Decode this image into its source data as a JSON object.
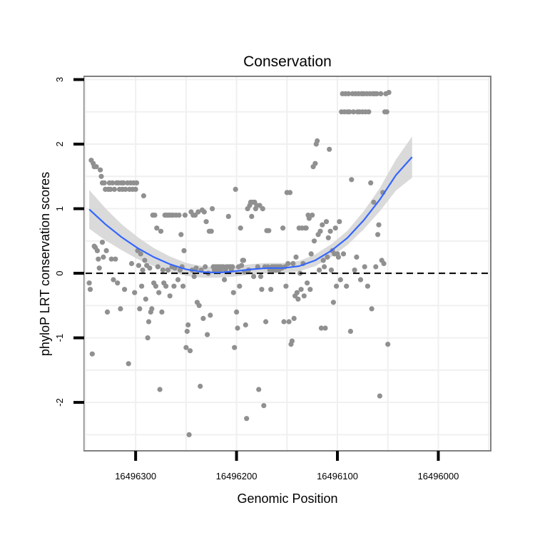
{
  "chart_data": {
    "type": "scatter",
    "title": "Conservation",
    "xlabel": "Genomic Position",
    "ylabel": "phyloP LRT conservation scores",
    "x_reversed": true,
    "xlim": [
      16496351,
      16495948
    ],
    "ylim": [
      -2.75,
      3.05
    ],
    "x_ticks": [
      16496300,
      16496200,
      16496100,
      16496000
    ],
    "x_tick_labels": [
      "16496300",
      "16496200",
      "16496100",
      "16496000"
    ],
    "y_ticks": [
      -2,
      -1,
      0,
      1,
      2,
      3
    ],
    "y_tick_labels": [
      "-2",
      "-1",
      "0",
      "1",
      "2",
      "3"
    ],
    "grid": true,
    "reference_line": {
      "y": 0,
      "style": "dashed",
      "color": "#000000"
    },
    "point_color": "#909090",
    "smooth_color": "#3366ff",
    "ribbon_color": "#d3d3d3",
    "points": [
      [
        16496346,
        -0.15
      ],
      [
        16496345,
        -0.25
      ],
      [
        16496344,
        1.75
      ],
      [
        16496343,
        -1.25
      ],
      [
        16496342,
        1.7
      ],
      [
        16496341,
        1.65
      ],
      [
        16496341,
        0.42
      ],
      [
        16496340,
        0.4
      ],
      [
        16496339,
        1.65
      ],
      [
        16496338,
        0.35
      ],
      [
        16496337,
        0.22
      ],
      [
        16496336,
        0.08
      ],
      [
        16496335,
        1.6
      ],
      [
        16496334,
        1.5
      ],
      [
        16496333,
        0.48
      ],
      [
        16496333,
        1.4
      ],
      [
        16496332,
        0.25
      ],
      [
        16496331,
        1.4
      ],
      [
        16496330,
        1.3
      ],
      [
        16496329,
        0.35
      ],
      [
        16496328,
        -0.6
      ],
      [
        16496327,
        1.3
      ],
      [
        16496326,
        1.4
      ],
      [
        16496325,
        1.3
      ],
      [
        16496324,
        0.22
      ],
      [
        16496323,
        1.4
      ],
      [
        16496322,
        -0.1
      ],
      [
        16496321,
        1.3
      ],
      [
        16496320,
        0.22
      ],
      [
        16496319,
        1.4
      ],
      [
        16496318,
        -0.15
      ],
      [
        16496317,
        1.4
      ],
      [
        16496316,
        1.3
      ],
      [
        16496315,
        -0.55
      ],
      [
        16496314,
        1.4
      ],
      [
        16496313,
        1.3
      ],
      [
        16496312,
        1.4
      ],
      [
        16496311,
        -0.25
      ],
      [
        16496310,
        1.3
      ],
      [
        16496308,
        1.4
      ],
      [
        16496307,
        -1.4
      ],
      [
        16496306,
        1.3
      ],
      [
        16496305,
        1.4
      ],
      [
        16496304,
        0.15
      ],
      [
        16496303,
        1.3
      ],
      [
        16496302,
        1.4
      ],
      [
        16496301,
        -0.3
      ],
      [
        16496300,
        1.3
      ],
      [
        16496299,
        1.4
      ],
      [
        16496298,
        0.35
      ],
      [
        16496297,
        0.12
      ],
      [
        16496296,
        -0.55
      ],
      [
        16496295,
        0.3
      ],
      [
        16496294,
        -0.2
      ],
      [
        16496293,
        0.05
      ],
      [
        16496292,
        1.2
      ],
      [
        16496291,
        0.2
      ],
      [
        16496290,
        -0.4
      ],
      [
        16496289,
        0.12
      ],
      [
        16496288,
        -1.0
      ],
      [
        16496287,
        -0.75
      ],
      [
        16496286,
        0.08
      ],
      [
        16496285,
        -0.6
      ],
      [
        16496284,
        -0.55
      ],
      [
        16496283,
        0.9
      ],
      [
        16496282,
        -0.15
      ],
      [
        16496281,
        0.9
      ],
      [
        16496280,
        -0.2
      ],
      [
        16496279,
        0.7
      ],
      [
        16496278,
        0.1
      ],
      [
        16496277,
        -0.3
      ],
      [
        16496276,
        -1.8
      ],
      [
        16496275,
        0.65
      ],
      [
        16496274,
        -0.6
      ],
      [
        16496273,
        0.05
      ],
      [
        16496272,
        -0.15
      ],
      [
        16496271,
        0.9
      ],
      [
        16496270,
        -0.2
      ],
      [
        16496269,
        0.9
      ],
      [
        16496268,
        0.05
      ],
      [
        16496267,
        0.9
      ],
      [
        16496266,
        -0.35
      ],
      [
        16496265,
        0.9
      ],
      [
        16496264,
        0.1
      ],
      [
        16496263,
        0.9
      ],
      [
        16496262,
        -0.2
      ],
      [
        16496261,
        0.08
      ],
      [
        16496260,
        0.9
      ],
      [
        16496258,
        -0.1
      ],
      [
        16496257,
        0.9
      ],
      [
        16496256,
        0.05
      ],
      [
        16496255,
        0.6
      ],
      [
        16496254,
        0.1
      ],
      [
        16496253,
        -0.2
      ],
      [
        16496252,
        0.35
      ],
      [
        16496251,
        0.9
      ],
      [
        16496250,
        -1.15
      ],
      [
        16496249,
        -0.9
      ],
      [
        16496248,
        -0.8
      ],
      [
        16496247,
        -2.5
      ],
      [
        16496246,
        -1.2
      ],
      [
        16496245,
        0.95
      ],
      [
        16496244,
        0.05
      ],
      [
        16496243,
        0.9
      ],
      [
        16496242,
        -0.05
      ],
      [
        16496241,
        0.9
      ],
      [
        16496240,
        0.08
      ],
      [
        16496239,
        -0.45
      ],
      [
        16496238,
        0.95
      ],
      [
        16496237,
        -0.5
      ],
      [
        16496236,
        -1.75
      ],
      [
        16496235,
        0.05
      ],
      [
        16496234,
        0.98
      ],
      [
        16496233,
        -0.7
      ],
      [
        16496232,
        0.95
      ],
      [
        16496231,
        0.1
      ],
      [
        16496230,
        0.8
      ],
      [
        16496229,
        -0.95
      ],
      [
        16496228,
        0.0
      ],
      [
        16496227,
        0.65
      ],
      [
        16496226,
        -0.65
      ],
      [
        16496225,
        0.65
      ],
      [
        16496224,
        1.0
      ],
      [
        16496223,
        0.1
      ],
      [
        16496222,
        0.05
      ],
      [
        16496221,
        0.1
      ],
      [
        16496220,
        0.1
      ],
      [
        16496219,
        0.05
      ],
      [
        16496218,
        0.1
      ],
      [
        16496217,
        0.1
      ],
      [
        16496216,
        0.05
      ],
      [
        16496215,
        0.1
      ],
      [
        16496214,
        0.1
      ],
      [
        16496213,
        0.1
      ],
      [
        16496212,
        -0.1
      ],
      [
        16496211,
        0.05
      ],
      [
        16496210,
        0.1
      ],
      [
        16496209,
        0.1
      ],
      [
        16496208,
        0.88
      ],
      [
        16496207,
        0.1
      ],
      [
        16496206,
        0.1
      ],
      [
        16496205,
        0.05
      ],
      [
        16496204,
        0.1
      ],
      [
        16496203,
        -0.3
      ],
      [
        16496202,
        -1.15
      ],
      [
        16496201,
        1.3
      ],
      [
        16496200,
        -0.6
      ],
      [
        16496199,
        -0.85
      ],
      [
        16496198,
        0.1
      ],
      [
        16496197,
        -0.2
      ],
      [
        16496196,
        0.7
      ],
      [
        16496195,
        0.12
      ],
      [
        16496194,
        0.2
      ],
      [
        16496193,
        0.2
      ],
      [
        16496192,
        0.02
      ],
      [
        16496191,
        -0.8
      ],
      [
        16496190,
        -2.25
      ],
      [
        16496189,
        1.0
      ],
      [
        16496188,
        0.05
      ],
      [
        16496187,
        1.05
      ],
      [
        16496186,
        1.1
      ],
      [
        16496185,
        0.88
      ],
      [
        16496184,
        1.1
      ],
      [
        16496183,
        -0.05
      ],
      [
        16496182,
        1.1
      ],
      [
        16496181,
        1.0
      ],
      [
        16496180,
        1.05
      ],
      [
        16496179,
        0.1
      ],
      [
        16496178,
        -1.8
      ],
      [
        16496177,
        1.05
      ],
      [
        16496176,
        -0.05
      ],
      [
        16496175,
        -0.25
      ],
      [
        16496174,
        1.0
      ],
      [
        16496173,
        -2.05
      ],
      [
        16496172,
        0.1
      ],
      [
        16496171,
        -0.75
      ],
      [
        16496170,
        0.66
      ],
      [
        16496169,
        0.1
      ],
      [
        16496168,
        0.66
      ],
      [
        16496167,
        0.05
      ],
      [
        16496166,
        -0.25
      ],
      [
        16496165,
        0.1
      ],
      [
        16496164,
        0.05
      ],
      [
        16496163,
        0.1
      ],
      [
        16496162,
        0.1
      ],
      [
        16496161,
        0.05
      ],
      [
        16496160,
        0.1
      ],
      [
        16496159,
        0.1
      ],
      [
        16496158,
        0.05
      ],
      [
        16496157,
        0.1
      ],
      [
        16496156,
        0.1
      ],
      [
        16496155,
        0.08
      ],
      [
        16496154,
        0.7
      ],
      [
        16496153,
        -0.75
      ],
      [
        16496152,
        0.1
      ],
      [
        16496151,
        -0.2
      ],
      [
        16496150,
        1.25
      ],
      [
        16496149,
        0.15
      ],
      [
        16496148,
        -0.75
      ],
      [
        16496147,
        1.25
      ],
      [
        16496146,
        -1.1
      ],
      [
        16496145,
        -1.05
      ],
      [
        16496144,
        0.15
      ],
      [
        16496143,
        -0.7
      ],
      [
        16496142,
        -0.35
      ],
      [
        16496141,
        0.25
      ],
      [
        16496140,
        -0.3
      ],
      [
        16496139,
        -0.4
      ],
      [
        16496138,
        0.7
      ],
      [
        16496137,
        0.0
      ],
      [
        16496136,
        -0.25
      ],
      [
        16496135,
        0.7
      ],
      [
        16496134,
        0.15
      ],
      [
        16496133,
        -0.35
      ],
      [
        16496132,
        0.7
      ],
      [
        16496131,
        0.7
      ],
      [
        16496130,
        -0.15
      ],
      [
        16496129,
        0.9
      ],
      [
        16496128,
        0.85
      ],
      [
        16496127,
        -0.25
      ],
      [
        16496126,
        0.3
      ],
      [
        16496125,
        0.9
      ],
      [
        16496124,
        1.65
      ],
      [
        16496123,
        0.5
      ],
      [
        16496122,
        1.7
      ],
      [
        16496121,
        2.0
      ],
      [
        16496120,
        2.05
      ],
      [
        16496119,
        0.6
      ],
      [
        16496118,
        0.05
      ],
      [
        16496117,
        0.65
      ],
      [
        16496116,
        -0.85
      ],
      [
        16496115,
        0.75
      ],
      [
        16496114,
        0.2
      ],
      [
        16496113,
        0.1
      ],
      [
        16496112,
        -0.85
      ],
      [
        16496111,
        0.8
      ],
      [
        16496110,
        0.25
      ],
      [
        16496109,
        0.55
      ],
      [
        16496108,
        1.92
      ],
      [
        16496107,
        0.65
      ],
      [
        16496106,
        0.05
      ],
      [
        16496105,
        0.35
      ],
      [
        16496104,
        -0.45
      ],
      [
        16496103,
        0.3
      ],
      [
        16496102,
        0.7
      ],
      [
        16496101,
        -0.2
      ],
      [
        16496100,
        0.3
      ],
      [
        16496099,
        0.25
      ],
      [
        16496098,
        0.8
      ],
      [
        16496097,
        -0.1
      ],
      [
        16496096,
        2.5
      ],
      [
        16496095,
        2.78
      ],
      [
        16496094,
        0.3
      ],
      [
        16496093,
        2.5
      ],
      [
        16496092,
        2.78
      ],
      [
        16496091,
        -0.2
      ],
      [
        16496090,
        2.5
      ],
      [
        16496089,
        2.78
      ],
      [
        16496088,
        2.5
      ],
      [
        16496087,
        -0.9
      ],
      [
        16496086,
        1.45
      ],
      [
        16496085,
        2.78
      ],
      [
        16496084,
        2.5
      ],
      [
        16496083,
        0.05
      ],
      [
        16496082,
        2.78
      ],
      [
        16496081,
        0.25
      ],
      [
        16496080,
        2.5
      ],
      [
        16496079,
        2.78
      ],
      [
        16496078,
        2.5
      ],
      [
        16496077,
        -0.1
      ],
      [
        16496076,
        2.78
      ],
      [
        16496075,
        2.5
      ],
      [
        16496074,
        2.78
      ],
      [
        16496073,
        0.1
      ],
      [
        16496072,
        2.5
      ],
      [
        16496071,
        2.78
      ],
      [
        16496070,
        -0.2
      ],
      [
        16496069,
        2.5
      ],
      [
        16496068,
        2.78
      ],
      [
        16496067,
        1.4
      ],
      [
        16496066,
        -0.55
      ],
      [
        16496065,
        2.78
      ],
      [
        16496064,
        1.1
      ],
      [
        16496063,
        2.78
      ],
      [
        16496062,
        0.1
      ],
      [
        16496061,
        2.78
      ],
      [
        16496060,
        0.6
      ],
      [
        16496059,
        0.75
      ],
      [
        16496058,
        -1.9
      ],
      [
        16496057,
        2.78
      ],
      [
        16496056,
        0.2
      ],
      [
        16496055,
        1.25
      ],
      [
        16496054,
        0.15
      ],
      [
        16496053,
        2.5
      ],
      [
        16496052,
        2.78
      ],
      [
        16496051,
        2.5
      ],
      [
        16496050,
        -1.1
      ],
      [
        16496049,
        2.8
      ]
    ],
    "smooth": [
      [
        16496346,
        0.99
      ],
      [
        16496330,
        0.76
      ],
      [
        16496314,
        0.56
      ],
      [
        16496298,
        0.39
      ],
      [
        16496282,
        0.25
      ],
      [
        16496266,
        0.14
      ],
      [
        16496250,
        0.06
      ],
      [
        16496234,
        0.02
      ],
      [
        16496218,
        0.01
      ],
      [
        16496202,
        0.03
      ],
      [
        16496186,
        0.06
      ],
      [
        16496170,
        0.08
      ],
      [
        16496154,
        0.08
      ],
      [
        16496138,
        0.11
      ],
      [
        16496122,
        0.2
      ],
      [
        16496106,
        0.35
      ],
      [
        16496090,
        0.55
      ],
      [
        16496074,
        0.82
      ],
      [
        16496058,
        1.14
      ],
      [
        16496042,
        1.52
      ],
      [
        16496026,
        1.8
      ]
    ],
    "ribbon_half_width": [
      0.3,
      0.25,
      0.2,
      0.17,
      0.14,
      0.12,
      0.1,
      0.09,
      0.08,
      0.08,
      0.08,
      0.08,
      0.08,
      0.08,
      0.09,
      0.1,
      0.11,
      0.14,
      0.18,
      0.24,
      0.32
    ]
  }
}
